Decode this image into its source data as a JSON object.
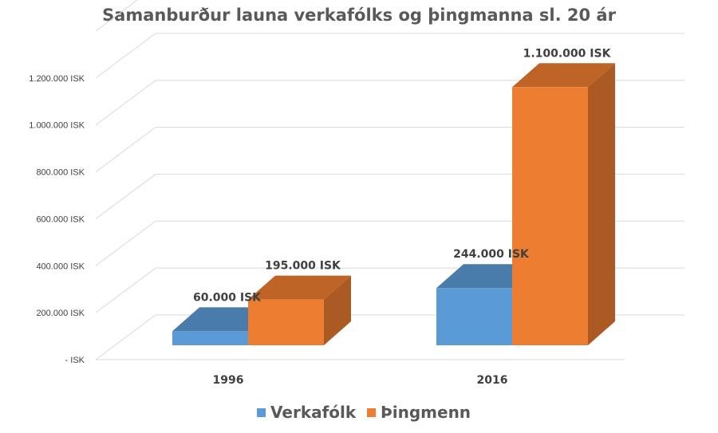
{
  "chart_data": {
    "type": "bar",
    "title": "Samanburður launa verkafólks og þingmanna sl. 20 ár",
    "categories": [
      "1996",
      "2016"
    ],
    "series": [
      {
        "name": "Verkafólk",
        "values": [
          60000,
          244000
        ],
        "labels": [
          "60.000 ISK",
          "244.000 ISK"
        ],
        "color": "#5b9bd5"
      },
      {
        "name": "Þingmenn",
        "values": [
          195000,
          1100000
        ],
        "labels": [
          "195.000 ISK",
          "1.100.000 ISK"
        ],
        "color": "#ed7d31"
      }
    ],
    "y_ticks": [
      {
        "value": 0,
        "label": "- ISK"
      },
      {
        "value": 200000,
        "label": "200.000 ISK"
      },
      {
        "value": 400000,
        "label": "400.000 ISK"
      },
      {
        "value": 600000,
        "label": "600.000 ISK"
      },
      {
        "value": 800000,
        "label": "800.000 ISK"
      },
      {
        "value": 1000000,
        "label": "1.000.000 ISK"
      },
      {
        "value": 1200000,
        "label": "1.200.000 ISK"
      }
    ],
    "ylim": [
      0,
      1400000
    ],
    "grid": true,
    "legend": "bottom",
    "style": "3d-column"
  }
}
